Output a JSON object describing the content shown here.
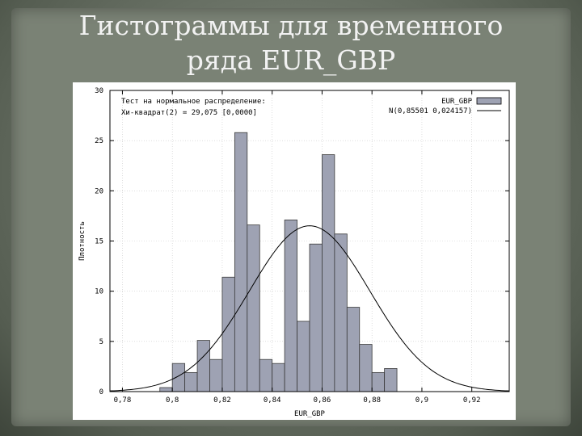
{
  "slide": {
    "title_line1": "Гистограммы для временного",
    "title_line2": "ряда EUR_GBP"
  },
  "chart_data": {
    "type": "bar",
    "xlabel": "EUR_GBP",
    "ylabel": "Плотность",
    "xlim": [
      0.775,
      0.935
    ],
    "ylim": [
      0,
      30
    ],
    "x_ticks": [
      {
        "value": 0.78,
        "label": "0,78"
      },
      {
        "value": 0.8,
        "label": "0,8"
      },
      {
        "value": 0.82,
        "label": "0,82"
      },
      {
        "value": 0.84,
        "label": "0,84"
      },
      {
        "value": 0.86,
        "label": "0,86"
      },
      {
        "value": 0.88,
        "label": "0,88"
      },
      {
        "value": 0.9,
        "label": "0,9"
      },
      {
        "value": 0.92,
        "label": "0,92"
      }
    ],
    "y_ticks": [
      {
        "value": 0,
        "label": "0"
      },
      {
        "value": 5,
        "label": "5"
      },
      {
        "value": 10,
        "label": "10"
      },
      {
        "value": 15,
        "label": "15"
      },
      {
        "value": 20,
        "label": "20"
      },
      {
        "value": 25,
        "label": "25"
      },
      {
        "value": 30,
        "label": "30"
      }
    ],
    "annotation": [
      "Тест на нормальное распределение:",
      "Хи-квадрат(2) = 29,075 [0,0000]"
    ],
    "legend": [
      {
        "name": "EUR_GBP",
        "kind": "bar"
      },
      {
        "name": "N(0,85501 0,024157)",
        "kind": "line"
      }
    ],
    "legend_position": "top-right",
    "grid": true,
    "bar_color": "#9ea2b3",
    "bars": [
      {
        "x0": 0.795,
        "x1": 0.8,
        "value": 0.4
      },
      {
        "x0": 0.8,
        "x1": 0.805,
        "value": 2.8
      },
      {
        "x0": 0.805,
        "x1": 0.81,
        "value": 1.9
      },
      {
        "x0": 0.81,
        "x1": 0.815,
        "value": 5.1
      },
      {
        "x0": 0.815,
        "x1": 0.82,
        "value": 3.2
      },
      {
        "x0": 0.82,
        "x1": 0.825,
        "value": 11.4
      },
      {
        "x0": 0.825,
        "x1": 0.83,
        "value": 25.8
      },
      {
        "x0": 0.83,
        "x1": 0.835,
        "value": 16.6
      },
      {
        "x0": 0.835,
        "x1": 0.84,
        "value": 3.2
      },
      {
        "x0": 0.84,
        "x1": 0.845,
        "value": 2.8
      },
      {
        "x0": 0.845,
        "x1": 0.85,
        "value": 17.1
      },
      {
        "x0": 0.85,
        "x1": 0.855,
        "value": 7.0
      },
      {
        "x0": 0.855,
        "x1": 0.86,
        "value": 14.7
      },
      {
        "x0": 0.86,
        "x1": 0.865,
        "value": 23.6
      },
      {
        "x0": 0.865,
        "x1": 0.87,
        "value": 15.7
      },
      {
        "x0": 0.87,
        "x1": 0.875,
        "value": 8.4
      },
      {
        "x0": 0.875,
        "x1": 0.88,
        "value": 4.7
      },
      {
        "x0": 0.88,
        "x1": 0.885,
        "value": 1.9
      },
      {
        "x0": 0.885,
        "x1": 0.89,
        "value": 2.3
      }
    ],
    "normal_curve": {
      "mean": 0.85501,
      "sd": 0.024157
    }
  }
}
